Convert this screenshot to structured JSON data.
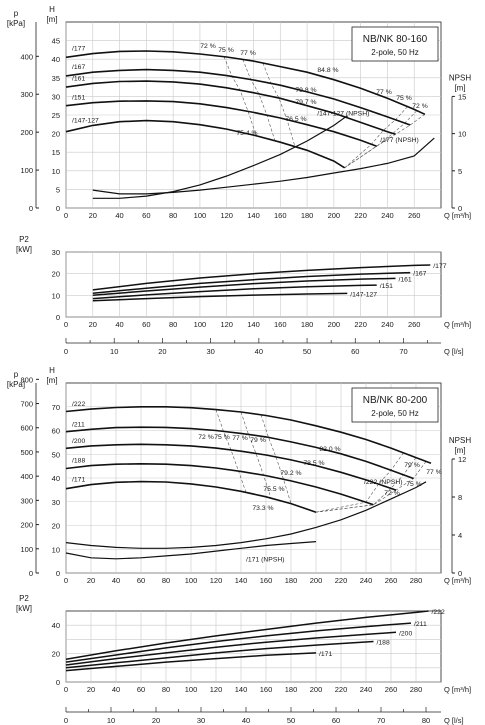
{
  "chart_data": [
    {
      "type": "line",
      "title": "NB/NK 80-160",
      "subtitle": "2-pole, 50 Hz",
      "xlabel": "Q [m³/h]",
      "ylabel_left": "H [m]",
      "ylabel_left_outer": "p [kPa]",
      "ylabel_right": "NPSH [m]",
      "xlim": [
        0,
        280
      ],
      "ylim": [
        0,
        50
      ],
      "npsh_lim": [
        0,
        25
      ],
      "x_ticks": [
        0,
        20,
        40,
        60,
        80,
        100,
        120,
        140,
        160,
        180,
        200,
        220,
        240,
        260
      ],
      "h_ticks": [
        0,
        5,
        10,
        15,
        20,
        25,
        30,
        35,
        40,
        45
      ],
      "p_ticks": [
        0,
        100,
        200,
        300,
        400
      ],
      "npsh_ticks": [
        0,
        5,
        10,
        15
      ],
      "grid": true,
      "head_curves": [
        {
          "name": "/177",
          "x": [
            0,
            20,
            40,
            60,
            80,
            100,
            120,
            140,
            160,
            180,
            200,
            220,
            240,
            260,
            268
          ],
          "y": [
            40.5,
            41.5,
            42.1,
            42.2,
            42,
            41.4,
            40.6,
            39.5,
            38,
            36.5,
            34.5,
            32.2,
            29.5,
            26.5,
            25.2
          ]
        },
        {
          "name": "/167",
          "x": [
            0,
            20,
            40,
            60,
            80,
            100,
            120,
            140,
            160,
            180,
            200,
            220,
            240,
            257
          ],
          "y": [
            35.5,
            36.5,
            37,
            37.2,
            37,
            36.5,
            35.6,
            34.4,
            33,
            31.2,
            29.3,
            27,
            24.5,
            22.3
          ]
        },
        {
          "name": "/161",
          "x": [
            0,
            20,
            40,
            60,
            80,
            100,
            120,
            140,
            160,
            180,
            200,
            220,
            240,
            246
          ],
          "y": [
            32.5,
            33.5,
            34,
            34.1,
            33.9,
            33.3,
            32.3,
            31,
            29.5,
            27.5,
            25.5,
            23,
            20.5,
            19.8
          ]
        },
        {
          "name": "/151",
          "x": [
            0,
            20,
            40,
            60,
            80,
            100,
            120,
            140,
            160,
            180,
            200,
            220,
            232
          ],
          "y": [
            27.5,
            28.3,
            28.7,
            28.8,
            28.6,
            28,
            27,
            25.7,
            24.2,
            22.4,
            20.5,
            18.2,
            16.6
          ]
        },
        {
          "name": "/147-127",
          "x": [
            0,
            20,
            40,
            60,
            80,
            100,
            120,
            140,
            160,
            180,
            200,
            208
          ],
          "y": [
            20.5,
            22.2,
            23.2,
            23.5,
            23.2,
            22.4,
            21.2,
            19.6,
            17.7,
            15.5,
            12.6,
            10.8
          ]
        }
      ],
      "npsh_curves": [
        {
          "name": "/147-127 (NPSH)",
          "x": [
            20,
            40,
            60,
            80,
            100,
            120,
            140,
            160,
            180,
            200,
            210
          ],
          "y": [
            1.3,
            1.3,
            1.6,
            2.2,
            3.1,
            4.3,
            5.7,
            7.2,
            9,
            11.1,
            12.4
          ]
        },
        {
          "name": "/177 (NPSH)",
          "x": [
            20,
            40,
            60,
            80,
            100,
            120,
            140,
            160,
            180,
            200,
            220,
            240,
            260,
            275
          ],
          "y": [
            2.4,
            1.9,
            1.9,
            2.1,
            2.4,
            2.8,
            3.2,
            3.6,
            4.1,
            4.7,
            5.3,
            6.0,
            7.0,
            9.4
          ]
        }
      ],
      "efficiency_labels": [
        "72 %",
        "75 %",
        "77 %",
        "84.8 %",
        "79.8 %",
        "79.7 %",
        "76.5 %",
        "75.4 %",
        "77 %",
        "75 %",
        "72 %"
      ],
      "power": {
        "ylabel": "P2 [kW]",
        "ylim": [
          0,
          30
        ],
        "y_ticks": [
          0,
          10,
          20,
          30
        ],
        "xlabel": "Q [m³/h]",
        "x_ticks": [
          0,
          20,
          40,
          60,
          80,
          100,
          120,
          140,
          160,
          180,
          200,
          220,
          240,
          260
        ],
        "series": [
          {
            "name": "/177",
            "x": [
              20,
              60,
              100,
              140,
              180,
              220,
              260,
              272
            ],
            "y": [
              12.5,
              15.5,
              18,
              20,
              21.5,
              22.8,
              23.8,
              24
            ]
          },
          {
            "name": "/167",
            "x": [
              20,
              60,
              100,
              140,
              180,
              220,
              257
            ],
            "y": [
              11,
              13.3,
              15.5,
              17.2,
              18.7,
              19.8,
              20.5
            ]
          },
          {
            "name": "/161",
            "x": [
              20,
              60,
              100,
              140,
              180,
              220,
              246
            ],
            "y": [
              10,
              12,
              13.8,
              15.4,
              16.6,
              17.5,
              17.8
            ]
          },
          {
            "name": "/151",
            "x": [
              20,
              60,
              100,
              140,
              180,
              220,
              232
            ],
            "y": [
              8.5,
              10.2,
              11.7,
              13,
              14,
              14.6,
              14.7
            ]
          },
          {
            "name": "/147-127",
            "x": [
              20,
              60,
              100,
              140,
              180,
              210
            ],
            "y": [
              7.5,
              8.5,
              9.4,
              10.1,
              10.6,
              10.9
            ]
          }
        ]
      },
      "ls_axis": {
        "label": "Q [l/s]",
        "ticks": [
          0,
          10,
          20,
          30,
          40,
          50,
          60,
          70
        ]
      }
    },
    {
      "type": "line",
      "title": "NB/NK 80-200",
      "subtitle": "2-pole, 50 Hz",
      "xlabel": "Q [m³/h]",
      "ylabel_left": "H [m]",
      "ylabel_left_outer": "p [kPa]",
      "ylabel_right": "NPSH [m]",
      "xlim": [
        0,
        300
      ],
      "ylim": [
        0,
        80
      ],
      "npsh_lim": [
        0,
        20
      ],
      "x_ticks": [
        0,
        20,
        40,
        60,
        80,
        100,
        120,
        140,
        160,
        180,
        200,
        220,
        240,
        260,
        280
      ],
      "h_ticks": [
        0,
        10,
        20,
        30,
        40,
        50,
        60,
        70
      ],
      "p_ticks": [
        0,
        100,
        200,
        300,
        400,
        500,
        600,
        700,
        800
      ],
      "npsh_ticks": [
        0,
        4,
        8,
        12
      ],
      "grid": true,
      "head_curves": [
        {
          "name": "/222",
          "x": [
            0,
            20,
            40,
            60,
            80,
            100,
            120,
            140,
            160,
            180,
            200,
            220,
            240,
            260,
            280,
            292
          ],
          "y": [
            68,
            69,
            69.7,
            70,
            70,
            69.6,
            68.8,
            67.8,
            66.3,
            64.4,
            62,
            59.3,
            56.2,
            52.6,
            48.6,
            46.2
          ]
        },
        {
          "name": "/211",
          "x": [
            0,
            20,
            40,
            60,
            80,
            100,
            120,
            140,
            160,
            180,
            200,
            220,
            240,
            260,
            278
          ],
          "y": [
            59.5,
            60.5,
            61.2,
            61.4,
            61.3,
            60.8,
            60,
            58.8,
            57.3,
            55.2,
            52.9,
            50.2,
            47,
            43.3,
            39.8
          ]
        },
        {
          "name": "/200",
          "x": [
            0,
            20,
            40,
            60,
            80,
            100,
            120,
            140,
            160,
            180,
            200,
            220,
            240,
            260,
            264
          ],
          "y": [
            52.5,
            53.5,
            54,
            54.2,
            54,
            53.5,
            52.6,
            51.3,
            49.7,
            47.6,
            45.2,
            42.4,
            39.2,
            35.6,
            34.9
          ]
        },
        {
          "name": "/188",
          "x": [
            0,
            20,
            40,
            60,
            80,
            100,
            120,
            140,
            160,
            180,
            200,
            220,
            240,
            246
          ],
          "y": [
            44,
            45.2,
            45.8,
            46,
            45.8,
            45.2,
            44.2,
            42.8,
            41,
            38.8,
            36.2,
            33.2,
            29.8,
            28.7
          ]
        },
        {
          "name": "/171",
          "x": [
            0,
            20,
            40,
            60,
            80,
            100,
            120,
            140,
            160,
            180,
            200
          ],
          "y": [
            35.5,
            37.2,
            38.2,
            38.5,
            38.3,
            37.5,
            36.2,
            34.4,
            32.1,
            29.2,
            25.6
          ]
        }
      ],
      "npsh_curves": [
        {
          "name": "/171 (NPSH)",
          "x": [
            0,
            20,
            40,
            60,
            80,
            100,
            120,
            140,
            160,
            180,
            200
          ],
          "y": [
            2.1,
            1.6,
            1.5,
            1.6,
            1.8,
            2.0,
            2.3,
            2.6,
            2.9,
            3.1,
            3.3
          ]
        },
        {
          "name": "/222 (NPSH)",
          "x": [
            0,
            20,
            40,
            60,
            80,
            100,
            120,
            140,
            160,
            180,
            200,
            220,
            240,
            260,
            280,
            288
          ],
          "y": [
            3.2,
            2.9,
            2.7,
            2.6,
            2.6,
            2.7,
            2.9,
            3.2,
            3.6,
            4.1,
            4.8,
            5.6,
            6.6,
            7.8,
            9.0,
            9.6
          ]
        }
      ],
      "efficiency_labels": [
        "72 %",
        "75 %",
        "77 %",
        "79 %",
        "82.0 %",
        "78.5 %",
        "79.2 %",
        "75.5 %",
        "73.3 %",
        "79 %",
        "77 %",
        "75 %",
        "72 %"
      ],
      "power": {
        "ylabel": "P2 [kW]",
        "ylim": [
          0,
          50
        ],
        "y_ticks": [
          0,
          20,
          40
        ],
        "y_ticks_minor": [
          10,
          30
        ],
        "xlabel": "Q [m³/h]",
        "x_ticks": [
          0,
          20,
          40,
          60,
          80,
          100,
          120,
          140,
          160,
          180,
          200,
          220,
          240,
          260,
          280
        ],
        "series": [
          {
            "name": "/222",
            "x": [
              0,
              40,
              80,
              120,
              160,
              200,
              240,
              280,
              290
            ],
            "y": [
              16,
              22,
              27.5,
              32.5,
              37,
              41.5,
              45.5,
              49,
              50
            ]
          },
          {
            "name": "/211",
            "x": [
              0,
              40,
              80,
              120,
              160,
              200,
              240,
              276
            ],
            "y": [
              14,
              19,
              24,
              28.5,
              32.5,
              36,
              39,
              41.5
            ]
          },
          {
            "name": "/200",
            "x": [
              0,
              40,
              80,
              120,
              160,
              200,
              240,
              264
            ],
            "y": [
              12,
              16.5,
              20.5,
              24.5,
              28,
              31,
              33.5,
              35
            ]
          },
          {
            "name": "/188",
            "x": [
              0,
              40,
              80,
              120,
              160,
              200,
              246
            ],
            "y": [
              10,
              13.5,
              17,
              20.5,
              23.5,
              26,
              28.5
            ]
          },
          {
            "name": "/171",
            "x": [
              0,
              40,
              80,
              120,
              160,
              200
            ],
            "y": [
              8,
              11,
              14,
              16.5,
              18.8,
              20.5
            ]
          }
        ]
      },
      "ls_axis": {
        "label": "Q [l/s]",
        "ticks": [
          0,
          10,
          20,
          30,
          40,
          50,
          60,
          70,
          80
        ]
      }
    }
  ]
}
